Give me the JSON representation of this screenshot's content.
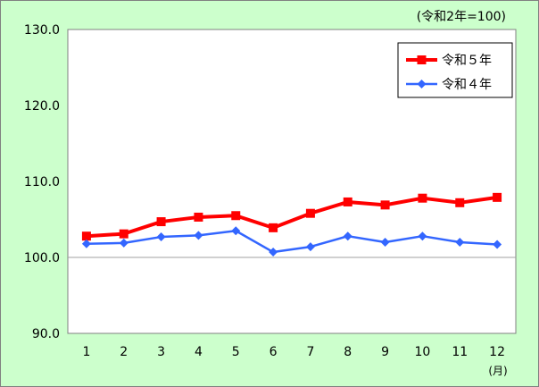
{
  "chart_data": {
    "type": "line",
    "note": "(令和2年=100)",
    "x_unit": "(月)",
    "categories": [
      "1",
      "2",
      "3",
      "4",
      "5",
      "6",
      "7",
      "8",
      "9",
      "10",
      "11",
      "12"
    ],
    "ylim": [
      90.0,
      130.0
    ],
    "y_ticks": [
      "90.0",
      "100.0",
      "110.0",
      "120.0",
      "130.0"
    ],
    "y_tick_values": [
      90,
      100,
      110,
      120,
      130
    ],
    "reference_line": 100,
    "grid": false,
    "legend_position": "top-right",
    "series": [
      {
        "name": "令和５年",
        "color": "#ff0000",
        "marker": "square",
        "values": [
          102.8,
          103.1,
          104.7,
          105.3,
          105.5,
          103.9,
          105.8,
          107.3,
          106.9,
          107.8,
          107.2,
          107.9
        ]
      },
      {
        "name": "令和４年",
        "color": "#3366ff",
        "marker": "diamond",
        "values": [
          101.8,
          101.9,
          102.7,
          102.9,
          103.5,
          100.7,
          101.4,
          102.8,
          102.0,
          102.8,
          102.0,
          101.7
        ]
      }
    ]
  }
}
